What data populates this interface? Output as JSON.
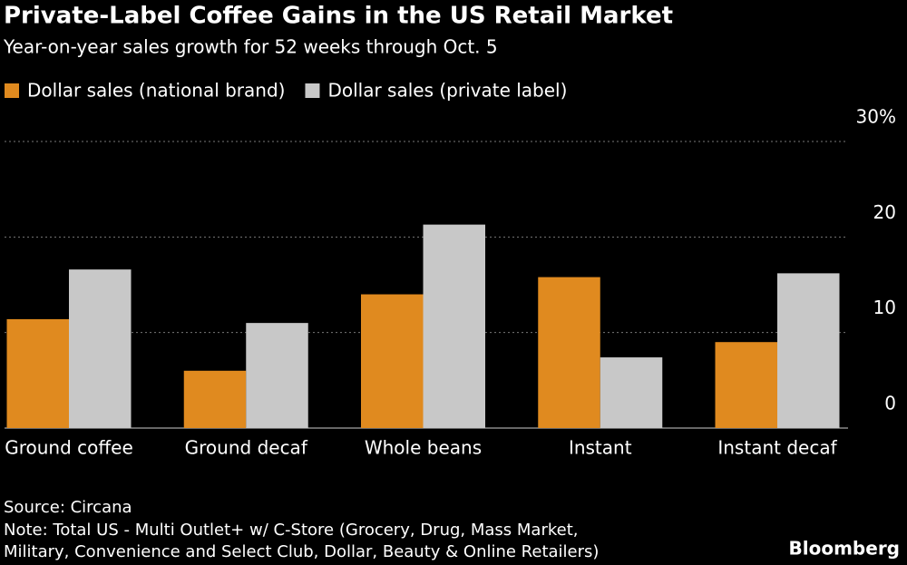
{
  "chart_data": {
    "type": "bar",
    "title": "Private-Label Coffee Gains in the US Retail Market",
    "subtitle": "Year-on-year sales growth for 52 weeks through Oct. 5",
    "categories": [
      "Ground coffee",
      "Ground decaf",
      "Whole beans",
      "Instant",
      "Instant decaf"
    ],
    "series": [
      {
        "name": "Dollar sales (national brand)",
        "color": "#e08a1f",
        "values": [
          11.4,
          6.0,
          14.0,
          15.8,
          9.0
        ]
      },
      {
        "name": "Dollar sales (private label)",
        "color": "#c8c8c8",
        "values": [
          16.6,
          11.0,
          21.3,
          7.4,
          16.2
        ]
      }
    ],
    "ylim": [
      0,
      30
    ],
    "yticks": [
      0,
      10,
      20,
      {
        "value": 30,
        "label": "30%"
      }
    ],
    "grid": true,
    "source": "Source: Circana",
    "note": [
      "Note: Total US - Multi Outlet+ w/ C-Store (Grocery, Drug, Mass Market,",
      "Military, Convenience and Select Club, Dollar, Beauty & Online Retailers)"
    ],
    "branding": "Bloomberg"
  }
}
